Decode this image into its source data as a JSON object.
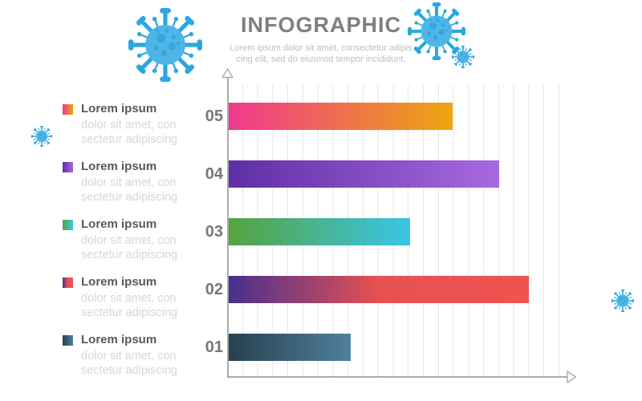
{
  "header": {
    "title": "INFOGRAPHIC",
    "subtitle_line1": "Lorem ipsum dolor sit amet, consectetur adipis",
    "subtitle_line2": "cing elit, sed do eiusmod tempor incididunt."
  },
  "legend": {
    "items": [
      {
        "title": "Lorem ipsum",
        "line1": "dolor sit amet, con",
        "line2": "sectetur adipiscing",
        "colors": [
          "#f0388f",
          "#eea50e"
        ]
      },
      {
        "title": "Lorem ipsum",
        "line1": "dolor sit amet, con",
        "line2": "sectetur adipiscing",
        "colors": [
          "#5f2fa5",
          "#a868e0"
        ]
      },
      {
        "title": "Lorem ipsum",
        "line1": "dolor sit amet, con",
        "line2": "sectetur adipiscing",
        "colors": [
          "#55a33c",
          "#3ac5e6"
        ]
      },
      {
        "title": "Lorem ipsum",
        "line1": "dolor sit amet, con",
        "line2": "sectetur adipiscing",
        "colors": [
          "#46308f",
          "#e65152",
          "#ef5350"
        ]
      },
      {
        "title": "Lorem ipsum",
        "line1": "dolor sit amet, con",
        "line2": "sectetur adipiscing",
        "colors": [
          "#28404f",
          "#50809c"
        ]
      }
    ]
  },
  "chart_data": {
    "type": "bar",
    "orientation": "horizontal",
    "title": "INFOGRAPHIC",
    "categories": [
      "05",
      "04",
      "03",
      "02",
      "01"
    ],
    "values": [
      68,
      82,
      55,
      91,
      37
    ],
    "xlabel": "",
    "ylabel": "",
    "xlim": [
      0,
      100
    ],
    "grid": "vertical-lines",
    "legend_position": "left",
    "bar_colors": [
      [
        "#f0388f",
        "#eea50e"
      ],
      [
        "#5f2fa5",
        "#a868e0"
      ],
      [
        "#55a33c",
        "#3ac5e6"
      ],
      [
        "#46308f",
        "#e65152",
        "#ef5350"
      ],
      [
        "#28404f",
        "#50809c"
      ]
    ],
    "axis_color": "#a8aaad",
    "grid_color": "#e4e5e7",
    "label_color": "#77787b"
  },
  "icons": {
    "virus_body": "#4db5e8",
    "virus_spikes": "#2aa7e0",
    "virus_spots": "#2b9cd4"
  }
}
